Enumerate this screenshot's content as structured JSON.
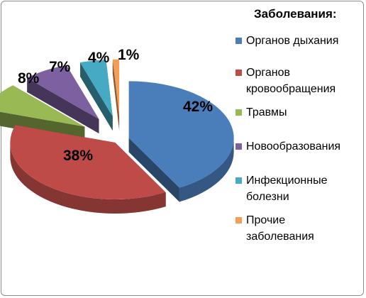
{
  "chart_data": {
    "type": "pie",
    "legend_title": "Заболевания:",
    "legend_position": "right",
    "labels": [
      "Органов дыхания",
      "Органов кровообращения",
      "Травмы",
      "Новообразования",
      "Инфекционные болезни",
      "Прочие заболевания"
    ],
    "legend_lines": [
      [
        "Органов дыхания"
      ],
      [
        "Органов",
        "кровообращения"
      ],
      [
        "Травмы"
      ],
      [
        "Новообразования"
      ],
      [
        "Инфекционные",
        "болезни"
      ],
      [
        "Прочие",
        "заболевания"
      ]
    ],
    "values": [
      42,
      38,
      8,
      7,
      4,
      1
    ],
    "value_labels": [
      "42%",
      "38%",
      "8%",
      "7%",
      "4%",
      "1%"
    ],
    "colors": [
      "#4a7ebb",
      "#be4b48",
      "#98b954",
      "#7d60a0",
      "#46aac5",
      "#f59d56"
    ],
    "exploded": true,
    "style": "3d"
  }
}
